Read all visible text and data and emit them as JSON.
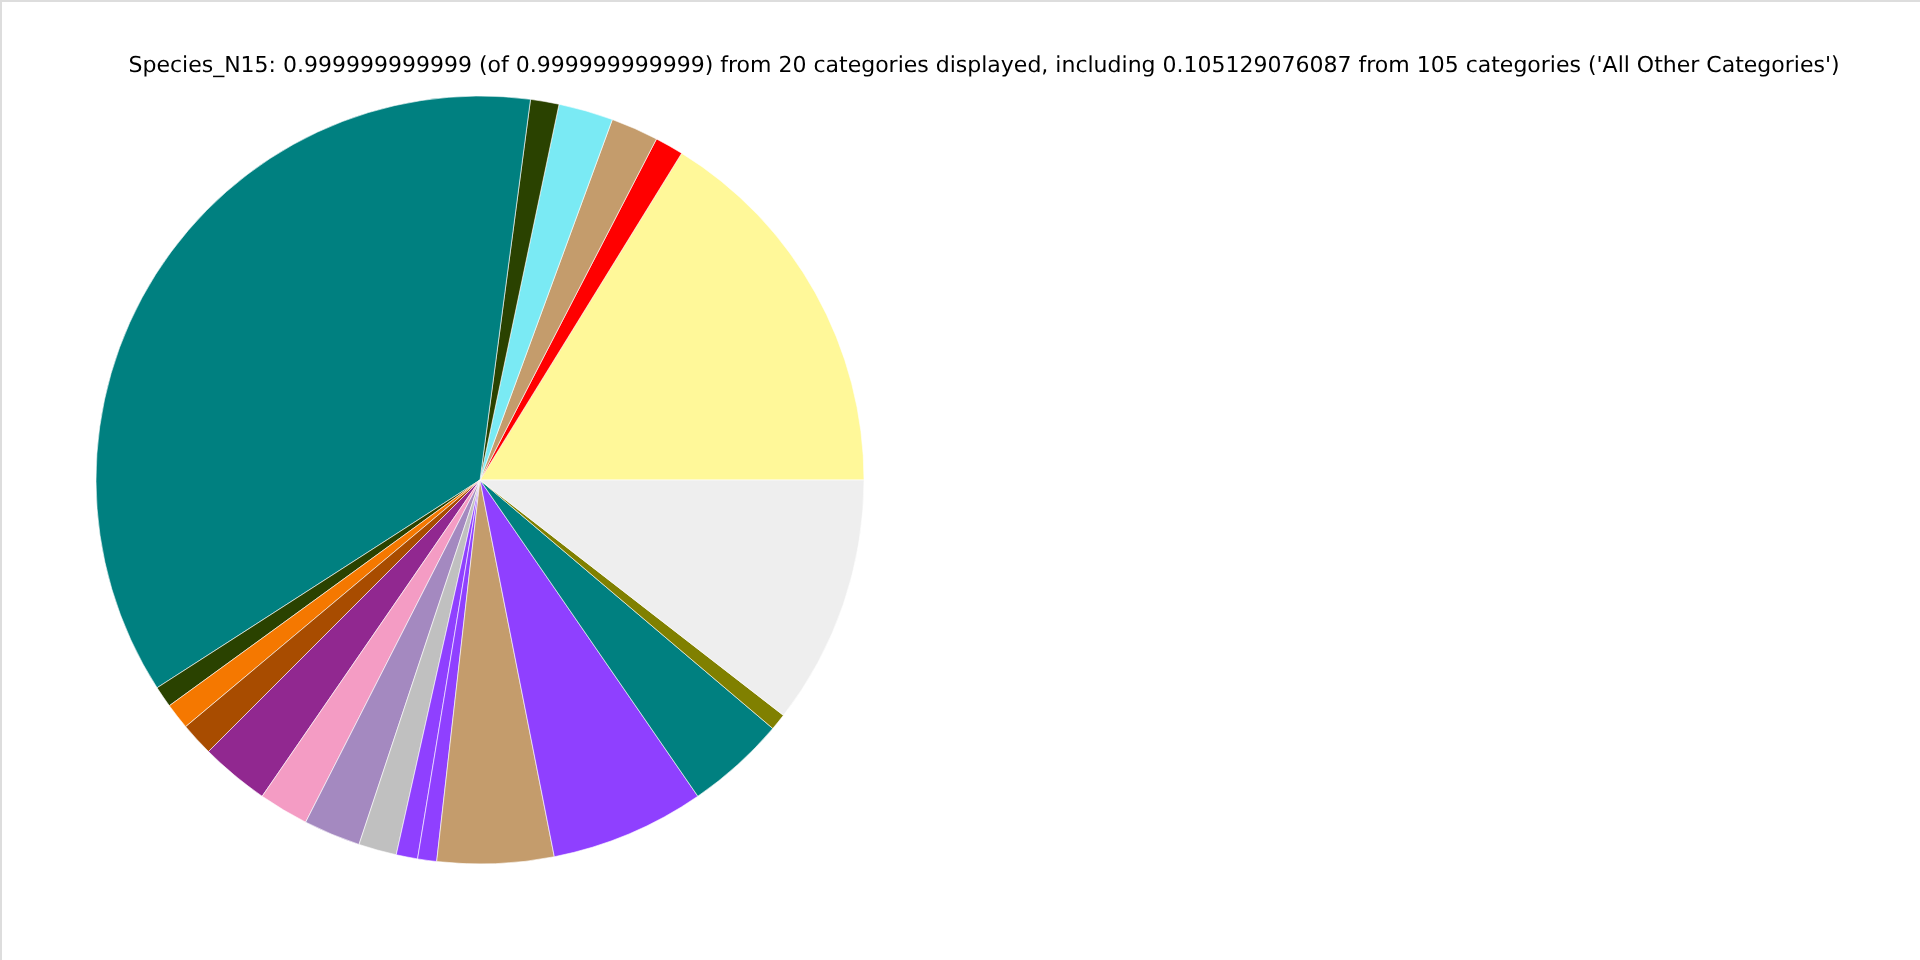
{
  "chart_data": {
    "type": "pie",
    "title": "Species_N15: 0.999999999999 (of 0.999999999999) from 20 categories displayed, including 0.105129076087 from 105 categories ('All Other Categories')",
    "categories": [
      null,
      null,
      null,
      null,
      null,
      null,
      null,
      null,
      null,
      null,
      null,
      null,
      null,
      null,
      null,
      null,
      null,
      null,
      null,
      null
    ],
    "values": [
      16.2,
      1.2,
      2.0,
      2.3,
      1.2,
      36.2,
      0.9,
      1.1,
      1.4,
      2.9,
      2.1,
      2.4,
      1.6,
      0.9,
      0.8,
      4.9,
      6.5,
      4.2,
      0.7,
      10.5
    ],
    "colors": [
      "#fff899",
      "#ff0000",
      "#c49c6c",
      "#7aeaf4",
      "#2a4200",
      "#008080",
      "#2a4200",
      "#f57800",
      "#a84c00",
      "#912890",
      "#f49cc4",
      "#a489c0",
      "#c0c0c0",
      "#8f40ff",
      "#8f40ff",
      "#c49c6c",
      "#8f40ff",
      "#008080",
      "#808000",
      "#eeeeee"
    ],
    "legend": false
  }
}
